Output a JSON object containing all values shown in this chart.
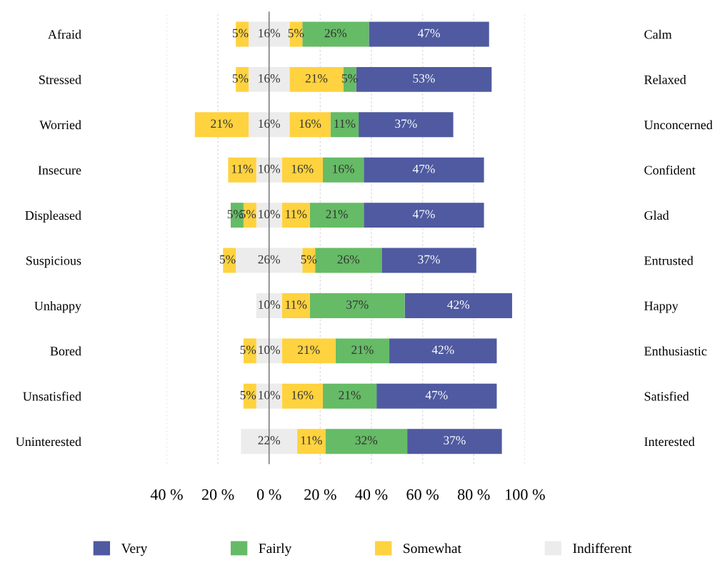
{
  "chart_data": {
    "type": "bar",
    "orientation": "horizontal",
    "categories": [
      "Afraid",
      "Stressed",
      "Worried",
      "Insecure",
      "Displeased",
      "Suspicious",
      "Unhappy",
      "Bored",
      "Unsatisfied",
      "Uninterested"
    ],
    "y2_categories": [
      "Calm",
      "Relaxed",
      "Unconcerned",
      "Confident",
      "Glad",
      "Entrusted",
      "Happy",
      "Enthusiastic",
      "Satisfied",
      "Interested"
    ],
    "series": [
      {
        "name": "Very",
        "color": "#4f5aa0",
        "base": [
          39,
          34,
          35,
          37,
          37,
          44,
          53,
          47,
          42,
          54
        ],
        "values": [
          47,
          53,
          37,
          47,
          47,
          37,
          42,
          42,
          47,
          37
        ],
        "value_labels": [
          "47%",
          "53%",
          "37%",
          "47%",
          "47%",
          "37%",
          "42%",
          "42%",
          "47%",
          "37%"
        ]
      },
      {
        "name": "Fairly",
        "color": "#66bb66",
        "base": [
          13,
          29,
          24,
          21,
          16,
          18,
          16,
          26,
          21,
          22
        ],
        "values": [
          26,
          5,
          11,
          16,
          21,
          26,
          37,
          21,
          21,
          32
        ],
        "value_labels": [
          "26%",
          "5%",
          "11%",
          "16%",
          "21%",
          "26%",
          "37%",
          "21%",
          "21%",
          "32%"
        ]
      },
      {
        "name": "Somewhat",
        "color": "#ffd23f",
        "base": [
          8,
          8,
          8,
          5,
          5,
          13,
          5,
          5,
          5,
          11
        ],
        "values": [
          5,
          21,
          16,
          16,
          11,
          5,
          11,
          21,
          16,
          11
        ],
        "value_labels": [
          "5%",
          "21%",
          "16%",
          "16%",
          "11%",
          "5%",
          "11%",
          "21%",
          "16%",
          "11%"
        ]
      },
      {
        "name": "Indifferent",
        "color": "#ececec",
        "base": [
          -8,
          -8,
          -8,
          -5,
          -5,
          -13,
          -5,
          -5,
          -5,
          -11
        ],
        "values": [
          16,
          16,
          16,
          10,
          10,
          26,
          10,
          10,
          10,
          22
        ],
        "value_labels": [
          "16%",
          "16%",
          "16%",
          "10%",
          "10%",
          "26%",
          "10%",
          "10%",
          "10%",
          "22%"
        ]
      },
      {
        "color": "#ffd23f",
        "base": [
          -13,
          -13,
          -29,
          -16,
          -10,
          -18,
          null,
          -10,
          -10,
          null
        ],
        "values": [
          5,
          5,
          21,
          11,
          5,
          5,
          null,
          5,
          5,
          null
        ],
        "value_labels": [
          "5%",
          "5%",
          "21%",
          "11%",
          "5%",
          "5%",
          null,
          "5%",
          "5%",
          null
        ]
      },
      {
        "color": "#66bb66",
        "base": [
          null,
          null,
          null,
          null,
          -15,
          null,
          null,
          null,
          null,
          null
        ],
        "values": [
          null,
          null,
          null,
          null,
          5,
          null,
          null,
          null,
          null,
          null
        ],
        "value_labels": [
          null,
          null,
          null,
          null,
          "5%",
          null,
          null,
          null,
          null,
          null
        ]
      }
    ],
    "xlim": [
      -40,
      100
    ],
    "xticks": [
      {
        "value": -40,
        "label": "40 %"
      },
      {
        "value": -20,
        "label": "20 %"
      },
      {
        "value": 0,
        "label": "0 %"
      },
      {
        "value": 20,
        "label": "20 %"
      },
      {
        "value": 40,
        "label": "40 %"
      },
      {
        "value": 60,
        "label": "60 %"
      },
      {
        "value": 80,
        "label": "80 %"
      },
      {
        "value": 100,
        "label": "100 %"
      }
    ],
    "ref_lines": [
      {
        "axis": "x",
        "value": 0,
        "color": "#808080"
      }
    ],
    "grid": "x",
    "legend": "bottom"
  }
}
